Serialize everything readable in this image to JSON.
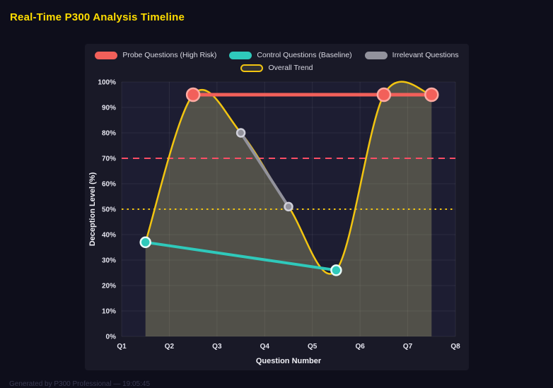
{
  "page": {
    "title": "Real-Time P300 Analysis Timeline",
    "footer": "Generated by P300 Professional — 19:05:45"
  },
  "chart_data": {
    "type": "line",
    "title": "Real-Time P300 Analysis Timeline",
    "xlabel": "Question Number",
    "ylabel": "Deception Level (%)",
    "x_range": [
      1,
      8
    ],
    "ylim": [
      0,
      100
    ],
    "grid": true,
    "legend_position": "top",
    "x_tick_values": [
      1,
      2,
      3,
      4,
      5,
      6,
      7,
      8
    ],
    "x_tick_labels": [
      "Q1",
      "Q2",
      "Q3",
      "Q4",
      "Q5",
      "Q6",
      "Q7",
      "Q8"
    ],
    "y_tick_values": [
      0,
      10,
      20,
      30,
      40,
      50,
      60,
      70,
      80,
      90,
      100
    ],
    "y_tick_labels": [
      "0%",
      "10%",
      "20%",
      "30%",
      "40%",
      "50%",
      "60%",
      "70%",
      "80%",
      "90%",
      "100%"
    ],
    "series": [
      {
        "name": "Probe Questions (High Risk)",
        "type": "line",
        "color": "#f2605a",
        "point_stroke": "#ffaba3",
        "line_width": 5,
        "point_radius": 9,
        "x": [
          2.5,
          6.5,
          7.5
        ],
        "values": [
          95,
          95,
          95
        ],
        "legend": "solid"
      },
      {
        "name": "Control Questions (Baseline)",
        "type": "line",
        "color": "#2fc9bb",
        "point_stroke": "#e8fbf9",
        "line_width": 4,
        "point_radius": 7,
        "x": [
          1.5,
          5.5
        ],
        "values": [
          37,
          26
        ],
        "legend": "solid"
      },
      {
        "name": "Irrelevant Questions",
        "type": "line",
        "color": "#92929c",
        "point_stroke": "#d0d0da",
        "line_width": 4,
        "point_radius": 5.5,
        "x": [
          3.5,
          4.5
        ],
        "values": [
          80,
          51
        ],
        "legend": "solid"
      },
      {
        "name": "Overall Trend",
        "type": "spline",
        "color": "#f2c511",
        "point_stroke": "#f2c511",
        "line_width": 2.5,
        "point_radius": 0,
        "x": [
          1.5,
          2.5,
          3.5,
          4.5,
          5.5,
          6.5,
          7.5
        ],
        "values": [
          37,
          95,
          80,
          51,
          26,
          95,
          95
        ],
        "fill": "rgba(233,228,140,0.26)",
        "legend": "outline"
      }
    ],
    "thresholds": [
      {
        "value": 70,
        "color": "#ff4d65",
        "style": "dashed"
      },
      {
        "value": 50,
        "color": "#f2c511",
        "style": "dotted"
      }
    ],
    "legend_rows": [
      [
        0,
        1,
        2
      ],
      [
        3
      ]
    ],
    "colors": {
      "page_bg": "#0e0e1b",
      "panel_bg": "#191927",
      "plot_bg": "#1d1d32",
      "grid": "rgba(255,255,255,0.07)",
      "tick": "#e4e4ee",
      "axis_title": "#f0f0f6",
      "title": "#ffdd00"
    }
  }
}
